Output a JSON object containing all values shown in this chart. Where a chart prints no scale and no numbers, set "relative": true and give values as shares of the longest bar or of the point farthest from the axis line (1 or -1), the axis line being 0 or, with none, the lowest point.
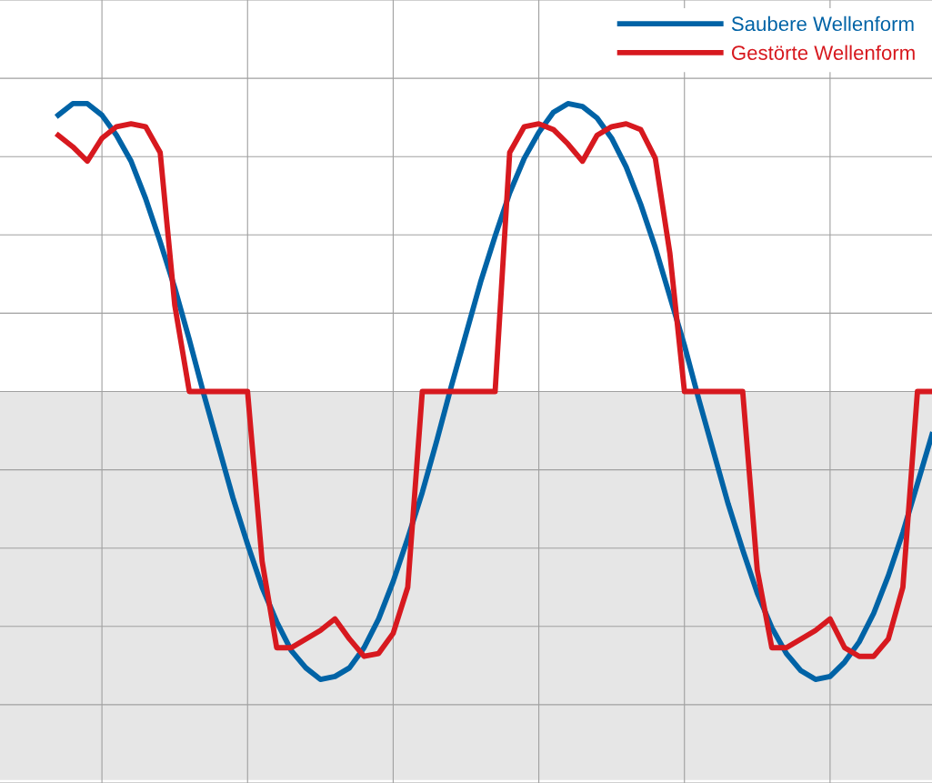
{
  "chart_data": {
    "type": "line",
    "relative": true,
    "grid": true,
    "legend": "top right",
    "categories": [
      null,
      null,
      null,
      null,
      null,
      null,
      null,
      null,
      null,
      null,
      null,
      null,
      null,
      null,
      null,
      null,
      null,
      null,
      null,
      null,
      null,
      null,
      null,
      null,
      null,
      null,
      null,
      null,
      null,
      null,
      null,
      null,
      null,
      null,
      null,
      null,
      null,
      null,
      null,
      null,
      null,
      null,
      null,
      null,
      null,
      null,
      null,
      null,
      null,
      null,
      null,
      null,
      null,
      null,
      null,
      null,
      null,
      null,
      null,
      null,
      null
    ],
    "series": [
      {
        "name": "Saubere Wellenform",
        "color": "#0063a6",
        "values": [
          0.96,
          1.0,
          1.0,
          0.96,
          0.89,
          0.8,
          0.67,
          0.52,
          0.36,
          0.18,
          -0.01,
          -0.19,
          -0.37,
          -0.53,
          -0.68,
          -0.8,
          -0.9,
          -0.96,
          -1.0,
          -0.99,
          -0.96,
          -0.89,
          -0.79,
          -0.66,
          -0.51,
          -0.35,
          -0.17,
          0.02,
          0.2,
          0.38,
          0.54,
          0.69,
          0.81,
          0.9,
          0.97,
          1.0,
          0.99,
          0.95,
          0.88,
          0.78,
          0.65,
          0.5,
          0.33,
          0.16,
          -0.03,
          -0.21,
          -0.39,
          -0.55,
          -0.7,
          -0.82,
          -0.91,
          -0.97,
          -1.0,
          -0.99,
          -0.94,
          -0.87,
          -0.77,
          -0.64,
          -0.49,
          -0.32,
          -0.15
        ]
      },
      {
        "name": "Gestörte Wellenform",
        "color": "#d7191f",
        "values": [
          0.89,
          0.85,
          0.8,
          0.88,
          0.92,
          0.93,
          0.92,
          0.83,
          0.3,
          0,
          0,
          0,
          0,
          0,
          -0.59,
          -0.89,
          -0.89,
          -0.86,
          -0.83,
          -0.79,
          -0.86,
          -0.92,
          -0.91,
          -0.84,
          -0.68,
          0,
          0,
          0,
          0,
          0,
          0,
          0.83,
          0.92,
          0.93,
          0.91,
          0.86,
          0.8,
          0.89,
          0.92,
          0.93,
          0.91,
          0.81,
          0.48,
          0,
          0,
          0,
          0,
          0,
          -0.62,
          -0.89,
          -0.89,
          -0.86,
          -0.83,
          -0.79,
          -0.89,
          -0.92,
          -0.92,
          -0.86,
          -0.68,
          0,
          0
        ]
      }
    ],
    "bands": [
      {
        "axis": "y",
        "from": -1.35,
        "to": 0,
        "color": "#e6e6e6"
      }
    ]
  }
}
